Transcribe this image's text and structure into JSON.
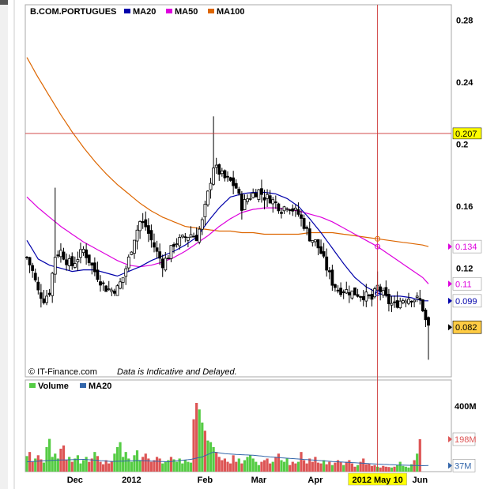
{
  "chart_data": {
    "type": "line",
    "title": "B.COM.PORTUGUES",
    "credit": "© IT-Finance.com",
    "disclaimer": "Data is Indicative and Delayed.",
    "colors": {
      "price": "#000000",
      "ma20": "#0000aa",
      "ma50": "#dd00dd",
      "ma100": "#dd6600",
      "vol_up": "#55cc44",
      "vol_down": "#dd5555",
      "vol_ma": "#3366aa",
      "crosshair": "#cc3333",
      "highlight": "#ffff00",
      "last_box": "#ffcc44"
    },
    "price_panel": {
      "ylim": [
        0.05,
        0.29
      ],
      "y_ticks": [
        "0.28",
        "0.24",
        "0.2",
        "0.16",
        "0.12"
      ],
      "y_tick_values": [
        0.28,
        0.24,
        0.2,
        0.16,
        0.12
      ],
      "legend": [
        {
          "name": "MA20",
          "color": "#0000aa"
        },
        {
          "name": "MA50",
          "color": "#dd00dd"
        },
        {
          "name": "MA100",
          "color": "#dd6600"
        }
      ],
      "crosshair_value": "0.207",
      "crosshair_price": 0.207,
      "crosshair_day": 124,
      "value_boxes": [
        {
          "label": "0.134",
          "value": 0.134,
          "color": "#dd00dd"
        },
        {
          "label": "0.11",
          "value": 0.11,
          "color": "#dd00dd"
        },
        {
          "label": "0.099",
          "value": 0.099,
          "color": "#0000aa"
        },
        {
          "label": "0.082",
          "value": 0.082,
          "color": "#000000"
        }
      ],
      "x_labels": [
        {
          "label": "Dec",
          "day": 17
        },
        {
          "label": "2012",
          "day": 37
        },
        {
          "label": "Feb",
          "day": 63
        },
        {
          "label": "Mar",
          "day": 82
        },
        {
          "label": "Apr",
          "day": 102
        },
        {
          "label": "2012 May 10",
          "day": 124
        },
        {
          "label": "Jun",
          "day": 139
        }
      ],
      "close_anchors": [
        [
          0,
          0.127
        ],
        [
          2,
          0.118
        ],
        [
          4,
          0.105
        ],
        [
          6,
          0.1
        ],
        [
          8,
          0.105
        ],
        [
          10,
          0.128
        ],
        [
          12,
          0.131
        ],
        [
          14,
          0.125
        ],
        [
          16,
          0.122
        ],
        [
          18,
          0.127
        ],
        [
          20,
          0.132
        ],
        [
          22,
          0.125
        ],
        [
          24,
          0.118
        ],
        [
          26,
          0.112
        ],
        [
          28,
          0.107
        ],
        [
          30,
          0.106
        ],
        [
          32,
          0.107
        ],
        [
          34,
          0.114
        ],
        [
          36,
          0.126
        ],
        [
          38,
          0.14
        ],
        [
          40,
          0.15
        ],
        [
          42,
          0.147
        ],
        [
          44,
          0.138
        ],
        [
          46,
          0.13
        ],
        [
          48,
          0.123
        ],
        [
          50,
          0.128
        ],
        [
          52,
          0.136
        ],
        [
          54,
          0.138
        ],
        [
          56,
          0.14
        ],
        [
          58,
          0.142
        ],
        [
          60,
          0.14
        ],
        [
          62,
          0.15
        ],
        [
          64,
          0.168
        ],
        [
          66,
          0.186
        ],
        [
          68,
          0.182
        ],
        [
          70,
          0.178
        ],
        [
          72,
          0.176
        ],
        [
          74,
          0.172
        ],
        [
          76,
          0.16
        ],
        [
          78,
          0.165
        ],
        [
          80,
          0.168
        ],
        [
          82,
          0.17
        ],
        [
          84,
          0.166
        ],
        [
          86,
          0.165
        ],
        [
          88,
          0.162
        ],
        [
          90,
          0.158
        ],
        [
          92,
          0.161
        ],
        [
          94,
          0.158
        ],
        [
          96,
          0.155
        ],
        [
          98,
          0.148
        ],
        [
          100,
          0.14
        ],
        [
          102,
          0.137
        ],
        [
          104,
          0.13
        ],
        [
          106,
          0.12
        ],
        [
          108,
          0.111
        ],
        [
          110,
          0.106
        ],
        [
          112,
          0.106
        ],
        [
          114,
          0.105
        ],
        [
          116,
          0.104
        ],
        [
          118,
          0.103
        ],
        [
          120,
          0.102
        ],
        [
          122,
          0.1
        ],
        [
          124,
          0.108
        ],
        [
          126,
          0.103
        ],
        [
          128,
          0.098
        ],
        [
          130,
          0.096
        ],
        [
          132,
          0.099
        ],
        [
          134,
          0.101
        ],
        [
          136,
          0.101
        ],
        [
          138,
          0.1
        ],
        [
          139,
          0.099
        ],
        [
          140,
          0.094
        ],
        [
          141,
          0.086
        ],
        [
          142,
          0.082
        ]
      ],
      "ma20": [
        [
          0,
          0.138
        ],
        [
          4,
          0.126
        ],
        [
          8,
          0.122
        ],
        [
          12,
          0.12
        ],
        [
          16,
          0.118
        ],
        [
          20,
          0.119
        ],
        [
          24,
          0.119
        ],
        [
          28,
          0.117
        ],
        [
          32,
          0.115
        ],
        [
          36,
          0.118
        ],
        [
          40,
          0.121
        ],
        [
          44,
          0.125
        ],
        [
          48,
          0.128
        ],
        [
          52,
          0.131
        ],
        [
          56,
          0.135
        ],
        [
          60,
          0.14
        ],
        [
          64,
          0.15
        ],
        [
          68,
          0.159
        ],
        [
          72,
          0.166
        ],
        [
          76,
          0.168
        ],
        [
          80,
          0.169
        ],
        [
          84,
          0.169
        ],
        [
          88,
          0.168
        ],
        [
          92,
          0.165
        ],
        [
          96,
          0.16
        ],
        [
          100,
          0.152
        ],
        [
          104,
          0.143
        ],
        [
          108,
          0.133
        ],
        [
          112,
          0.123
        ],
        [
          116,
          0.114
        ],
        [
          120,
          0.108
        ],
        [
          124,
          0.104
        ],
        [
          128,
          0.102
        ],
        [
          132,
          0.102
        ],
        [
          136,
          0.101
        ],
        [
          140,
          0.099
        ],
        [
          142,
          0.099
        ]
      ],
      "ma50": [
        [
          0,
          0.166
        ],
        [
          4,
          0.159
        ],
        [
          8,
          0.153
        ],
        [
          12,
          0.147
        ],
        [
          16,
          0.142
        ],
        [
          20,
          0.137
        ],
        [
          24,
          0.133
        ],
        [
          28,
          0.129
        ],
        [
          32,
          0.125
        ],
        [
          36,
          0.122
        ],
        [
          40,
          0.121
        ],
        [
          44,
          0.122
        ],
        [
          48,
          0.124
        ],
        [
          52,
          0.127
        ],
        [
          56,
          0.131
        ],
        [
          60,
          0.136
        ],
        [
          64,
          0.141
        ],
        [
          68,
          0.147
        ],
        [
          72,
          0.152
        ],
        [
          76,
          0.156
        ],
        [
          80,
          0.158
        ],
        [
          84,
          0.159
        ],
        [
          88,
          0.159
        ],
        [
          92,
          0.158
        ],
        [
          96,
          0.157
        ],
        [
          100,
          0.155
        ],
        [
          104,
          0.153
        ],
        [
          108,
          0.15
        ],
        [
          112,
          0.146
        ],
        [
          116,
          0.142
        ],
        [
          120,
          0.138
        ],
        [
          124,
          0.134
        ],
        [
          128,
          0.129
        ],
        [
          132,
          0.124
        ],
        [
          136,
          0.119
        ],
        [
          140,
          0.114
        ],
        [
          142,
          0.11
        ]
      ],
      "ma100": [
        [
          0,
          0.256
        ],
        [
          4,
          0.243
        ],
        [
          8,
          0.231
        ],
        [
          12,
          0.219
        ],
        [
          16,
          0.208
        ],
        [
          20,
          0.198
        ],
        [
          24,
          0.189
        ],
        [
          28,
          0.181
        ],
        [
          32,
          0.174
        ],
        [
          36,
          0.168
        ],
        [
          40,
          0.162
        ],
        [
          44,
          0.157
        ],
        [
          48,
          0.153
        ],
        [
          52,
          0.15
        ],
        [
          56,
          0.147
        ],
        [
          60,
          0.146
        ],
        [
          64,
          0.145
        ],
        [
          68,
          0.144
        ],
        [
          72,
          0.144
        ],
        [
          76,
          0.143
        ],
        [
          80,
          0.143
        ],
        [
          84,
          0.142
        ],
        [
          88,
          0.142
        ],
        [
          92,
          0.142
        ],
        [
          96,
          0.142
        ],
        [
          100,
          0.143
        ],
        [
          104,
          0.143
        ],
        [
          108,
          0.143
        ],
        [
          112,
          0.142
        ],
        [
          116,
          0.141
        ],
        [
          120,
          0.14
        ],
        [
          124,
          0.139
        ],
        [
          128,
          0.138
        ],
        [
          132,
          0.137
        ],
        [
          136,
          0.136
        ],
        [
          140,
          0.135
        ],
        [
          142,
          0.134
        ]
      ]
    },
    "volume_panel": {
      "legend": [
        {
          "name": "Volume",
          "color": "#55cc44"
        },
        {
          "name": "MA20",
          "color": "#3366aa"
        }
      ],
      "ylim": [
        0,
        560
      ],
      "y_ticks": [
        "400M"
      ],
      "y_tick_values": [
        400
      ],
      "unit": "M",
      "value_boxes": [
        {
          "label": "198M",
          "value": 198,
          "color": "#dd5555"
        },
        {
          "label": "37M",
          "value": 37,
          "color": "#3366aa"
        }
      ],
      "volume": [
        95,
        120,
        60,
        80,
        100,
        75,
        55,
        150,
        200,
        90,
        110,
        80,
        140,
        160,
        70,
        90,
        60,
        80,
        100,
        50,
        70,
        90,
        60,
        80,
        120,
        95,
        60,
        45,
        70,
        50,
        65,
        110,
        150,
        180,
        90,
        120,
        80,
        60,
        100,
        130,
        70,
        90,
        110,
        80,
        60,
        70,
        90,
        80,
        50,
        60,
        70,
        90,
        75,
        60,
        80,
        50,
        70,
        60,
        55,
        320,
        420,
        380,
        300,
        250,
        190,
        180,
        150,
        120,
        90,
        70,
        80,
        60,
        50,
        100,
        60,
        80,
        50,
        70,
        90,
        100,
        80,
        60,
        40,
        60,
        70,
        80,
        50,
        60,
        90,
        110,
        70,
        60,
        80,
        40,
        60,
        50,
        60,
        120,
        70,
        50,
        80,
        60,
        90,
        55,
        50,
        70,
        45,
        60,
        40,
        55,
        70,
        60,
        40,
        60,
        70,
        50,
        30,
        40,
        60,
        80,
        45,
        50,
        35,
        40,
        30,
        25,
        35,
        30,
        28,
        25,
        30,
        40,
        60,
        35,
        30,
        25,
        45,
        70,
        110,
        198
      ],
      "vol_ma_anchors": [
        [
          0,
          60
        ],
        [
          10,
          70
        ],
        [
          20,
          75
        ],
        [
          30,
          62
        ],
        [
          40,
          68
        ],
        [
          50,
          60
        ],
        [
          58,
          75
        ],
        [
          62,
          90
        ],
        [
          66,
          120
        ],
        [
          70,
          110
        ],
        [
          74,
          105
        ],
        [
          80,
          100
        ],
        [
          86,
          90
        ],
        [
          92,
          82
        ],
        [
          100,
          72
        ],
        [
          108,
          62
        ],
        [
          116,
          54
        ],
        [
          124,
          46
        ],
        [
          132,
          40
        ],
        [
          140,
          36
        ],
        [
          142,
          37
        ]
      ]
    }
  }
}
